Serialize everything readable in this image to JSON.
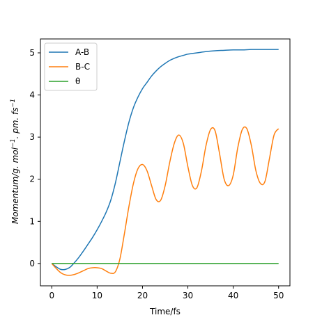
{
  "chart_data": {
    "type": "line",
    "xlabel": "Time/fs",
    "ylabel": {
      "base": "Momentum/g. mol",
      "exp1": "−1",
      "mid": ". pm. fs",
      "exp2": "−1"
    },
    "xlim": [
      -2.5,
      52.5
    ],
    "ylim": [
      -0.53,
      5.33
    ],
    "x_ticks": [
      0,
      10,
      20,
      30,
      40,
      50
    ],
    "y_ticks": [
      0,
      1,
      2,
      3,
      4,
      5
    ],
    "grid": false,
    "legend_position": "top-left",
    "series": [
      {
        "name": "A-B",
        "color": "#1f77b4",
        "x": [
          0,
          1,
          2,
          3,
          4,
          5,
          6,
          7,
          8,
          9,
          10,
          11,
          12,
          13,
          14,
          15,
          16,
          17,
          18,
          19,
          20,
          21,
          22,
          23,
          24,
          25,
          26,
          27,
          28,
          29,
          30,
          32,
          34,
          36,
          38,
          40,
          42,
          44,
          46,
          48,
          50
        ],
        "y": [
          0.0,
          -0.08,
          -0.14,
          -0.14,
          -0.09,
          0.02,
          0.15,
          0.3,
          0.46,
          0.62,
          0.8,
          1.0,
          1.22,
          1.5,
          1.9,
          2.4,
          2.9,
          3.35,
          3.7,
          3.95,
          4.15,
          4.3,
          4.45,
          4.57,
          4.67,
          4.75,
          4.82,
          4.87,
          4.91,
          4.94,
          4.97,
          5.0,
          5.03,
          5.05,
          5.06,
          5.07,
          5.07,
          5.08,
          5.08,
          5.08,
          5.08
        ]
      },
      {
        "name": "B-C",
        "color": "#ff7f0e",
        "x": [
          0,
          1,
          2,
          3,
          4,
          5,
          6,
          7,
          8,
          9,
          10,
          11,
          12,
          13,
          14,
          15,
          16,
          17,
          18,
          19,
          20,
          21,
          22,
          23,
          24,
          25,
          26,
          27,
          28,
          29,
          30,
          31,
          32,
          33,
          34,
          35,
          36,
          37,
          38,
          39,
          40,
          41,
          42,
          43,
          44,
          45,
          46,
          47,
          48,
          49,
          50
        ],
        "y": [
          0.0,
          -0.12,
          -0.22,
          -0.27,
          -0.28,
          -0.26,
          -0.22,
          -0.17,
          -0.12,
          -0.1,
          -0.1,
          -0.12,
          -0.18,
          -0.23,
          -0.2,
          0.1,
          0.7,
          1.35,
          1.9,
          2.25,
          2.35,
          2.2,
          1.85,
          1.52,
          1.5,
          1.85,
          2.4,
          2.85,
          3.05,
          2.85,
          2.3,
          1.85,
          1.8,
          2.2,
          2.8,
          3.18,
          3.15,
          2.6,
          2.0,
          1.85,
          2.1,
          2.75,
          3.18,
          3.2,
          2.8,
          2.2,
          1.9,
          1.95,
          2.5,
          3.05,
          3.2
        ]
      },
      {
        "name": "θ",
        "color": "#2ca02c",
        "x": [
          0,
          50
        ],
        "y": [
          0,
          0
        ]
      }
    ]
  }
}
